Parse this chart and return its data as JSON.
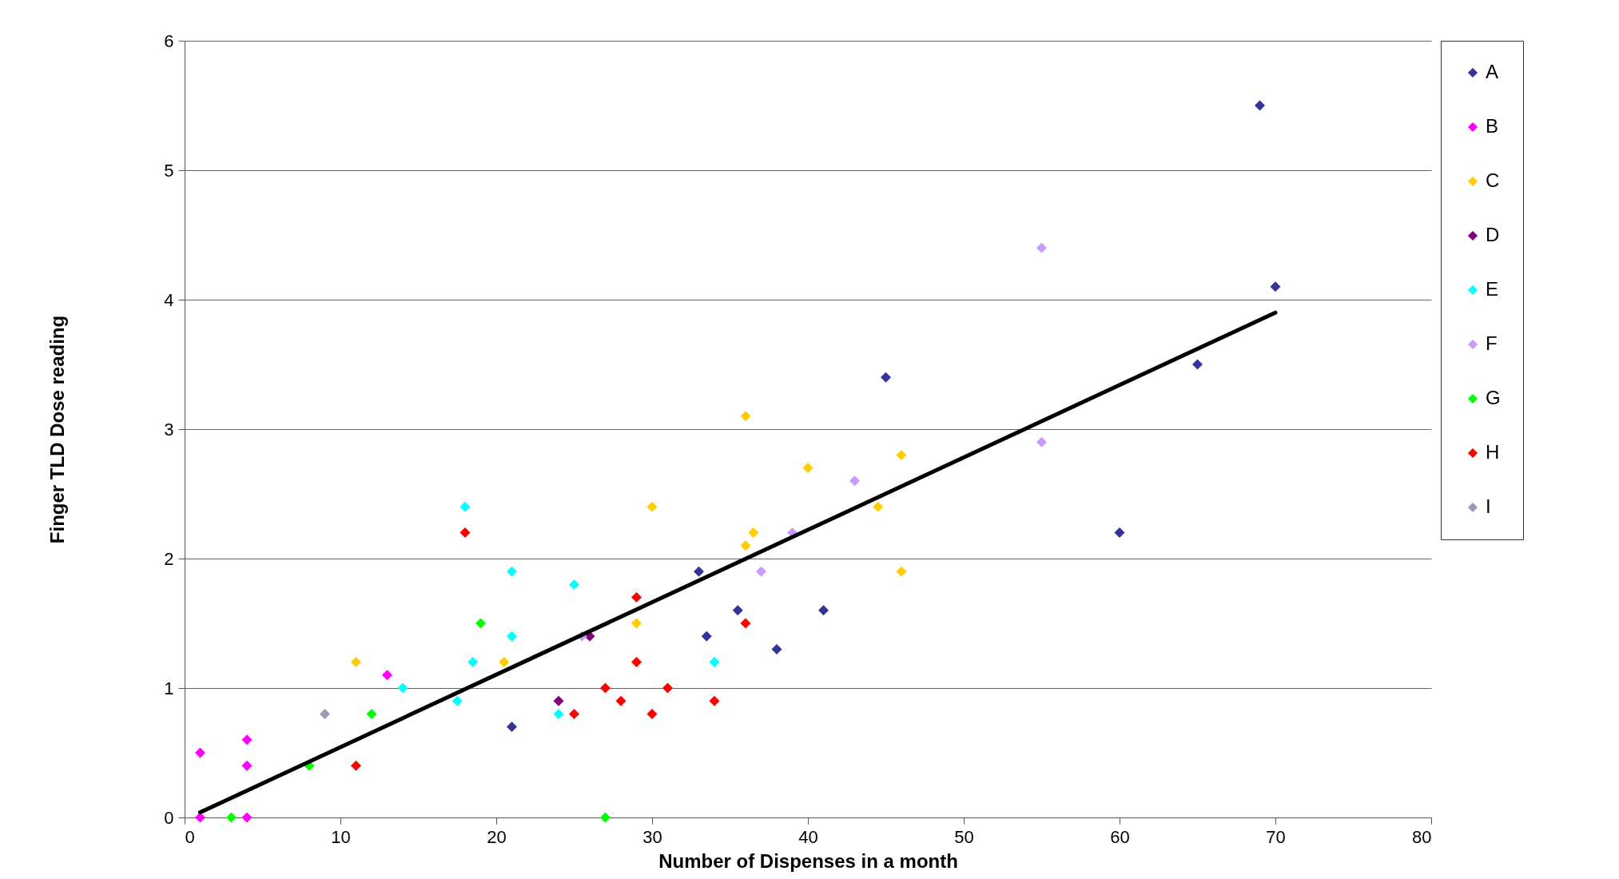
{
  "chart_data": {
    "type": "scatter",
    "xlabel": "Number of Dispenses in a month",
    "ylabel": "Finger TLD Dose reading",
    "xlim": [
      0,
      80
    ],
    "xticks": [
      0,
      10,
      20,
      30,
      40,
      50,
      60,
      70,
      80
    ],
    "ylim": [
      0,
      6
    ],
    "yticks": [
      0,
      1,
      2,
      3,
      4,
      5,
      6
    ],
    "grid": "y",
    "legend": "right",
    "marker": "diamond",
    "series": [
      {
        "name": "A",
        "color": "#333399",
        "x": [
          21,
          33,
          33.5,
          35.5,
          38,
          41,
          45,
          60,
          65,
          69,
          70
        ],
        "values": [
          0.7,
          1.9,
          1.4,
          1.6,
          1.3,
          1.6,
          3.4,
          2.2,
          3.5,
          5.5,
          4.1
        ]
      },
      {
        "name": "B",
        "color": "#ff00ff",
        "x": [
          1,
          1,
          4,
          4,
          4,
          13
        ],
        "values": [
          0.5,
          0,
          0.6,
          0.4,
          0,
          1.1
        ]
      },
      {
        "name": "C",
        "color": "#ffcc00",
        "x": [
          11,
          20.5,
          29,
          30,
          36,
          36,
          36.5,
          40,
          44.5,
          46,
          46
        ],
        "values": [
          1.2,
          1.2,
          1.5,
          2.4,
          3.1,
          2.1,
          2.2,
          2.7,
          2.4,
          2.8,
          1.9
        ]
      },
      {
        "name": "D",
        "color": "#800080",
        "x": [
          24,
          26
        ],
        "values": [
          0.9,
          1.4
        ]
      },
      {
        "name": "E",
        "color": "#00ffff",
        "x": [
          14,
          17.5,
          18,
          18.5,
          21,
          21,
          24,
          25,
          34
        ],
        "values": [
          1.0,
          0.9,
          2.4,
          1.2,
          1.9,
          1.4,
          0.8,
          1.8,
          1.2
        ]
      },
      {
        "name": "F",
        "color": "#cc99ff",
        "x": [
          25.5,
          37,
          39,
          43,
          55,
          55
        ],
        "values": [
          1.4,
          1.9,
          2.2,
          2.6,
          4.4,
          2.9
        ]
      },
      {
        "name": "G",
        "color": "#00ff00",
        "x": [
          3,
          8,
          12,
          19,
          27
        ],
        "values": [
          0,
          0.4,
          0.8,
          1.5,
          0
        ]
      },
      {
        "name": "H",
        "color": "#ff0000",
        "x": [
          11,
          18,
          25,
          27,
          28,
          29,
          29,
          30,
          31,
          34,
          36
        ],
        "values": [
          0.4,
          2.2,
          0.8,
          1.0,
          0.9,
          1.7,
          1.2,
          0.8,
          1.0,
          0.9,
          1.5
        ]
      },
      {
        "name": "I",
        "color": "#9999bb",
        "x": [
          9
        ],
        "values": [
          0.8
        ]
      },
      {
        "type": "line",
        "color": "#000000",
        "marker": "none",
        "x": [
          1,
          70
        ],
        "values": [
          0.04,
          3.9
        ]
      }
    ]
  }
}
